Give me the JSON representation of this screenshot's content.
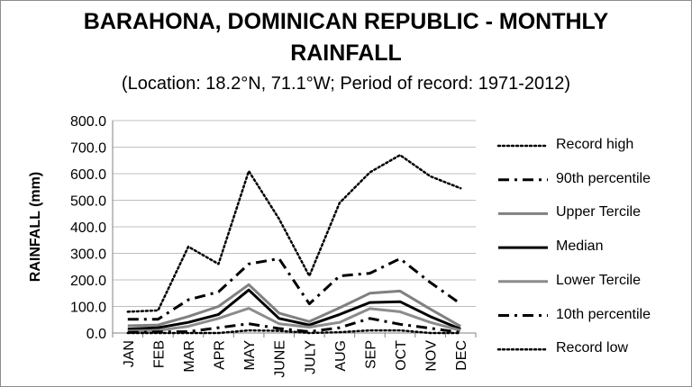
{
  "chart_data": {
    "type": "line",
    "title_line1": "BARAHONA, DOMINICAN REPUBLIC - MONTHLY",
    "title_line2": "RAINFALL",
    "subtitle": "(Location: 18.2°N, 71.1°W; Period of record: 1971-2012)",
    "xlabel": "",
    "ylabel": "RAINFALL (mm)",
    "ylim": [
      0,
      800
    ],
    "yticks": [
      "0.0",
      "100.0",
      "200.0",
      "300.0",
      "400.0",
      "500.0",
      "600.0",
      "700.0",
      "800.0"
    ],
    "categories": [
      "JAN",
      "FEB",
      "MAR",
      "APR",
      "MAY",
      "JUNE",
      "JULY",
      "AUG",
      "SEP",
      "OCT",
      "NOV",
      "DEC"
    ],
    "grid": "horizontal",
    "legend": "right",
    "series": [
      {
        "name": "Record high",
        "color": "#000000",
        "style": "dotted",
        "values": [
          80,
          85,
          325,
          260,
          610,
          430,
          215,
          490,
          605,
          670,
          590,
          545
        ]
      },
      {
        "name": "90th percentile",
        "color": "#000000",
        "style": "dashdot",
        "values": [
          52,
          52,
          125,
          155,
          260,
          280,
          110,
          215,
          225,
          280,
          190,
          110
        ]
      },
      {
        "name": "Upper Tercile",
        "color": "#808080",
        "style": "solid",
        "values": [
          27,
          30,
          62,
          100,
          182,
          75,
          43,
          95,
          150,
          158,
          90,
          25
        ]
      },
      {
        "name": "Median",
        "color": "#000000",
        "style": "solid",
        "values": [
          15,
          20,
          40,
          70,
          162,
          55,
          30,
          70,
          115,
          118,
          62,
          15
        ]
      },
      {
        "name": "Lower Tercile",
        "color": "#8c8c8c",
        "style": "solid",
        "values": [
          7,
          10,
          25,
          55,
          93,
          35,
          22,
          40,
          92,
          80,
          40,
          10
        ]
      },
      {
        "name": "10th percentile",
        "color": "#000000",
        "style": "dashdot",
        "values": [
          2,
          4,
          5,
          20,
          35,
          17,
          5,
          20,
          55,
          33,
          18,
          2
        ]
      },
      {
        "name": "Record low",
        "color": "#000000",
        "style": "dotted",
        "values": [
          0,
          0,
          0,
          0,
          10,
          8,
          0,
          3,
          10,
          10,
          0,
          0
        ]
      }
    ]
  }
}
